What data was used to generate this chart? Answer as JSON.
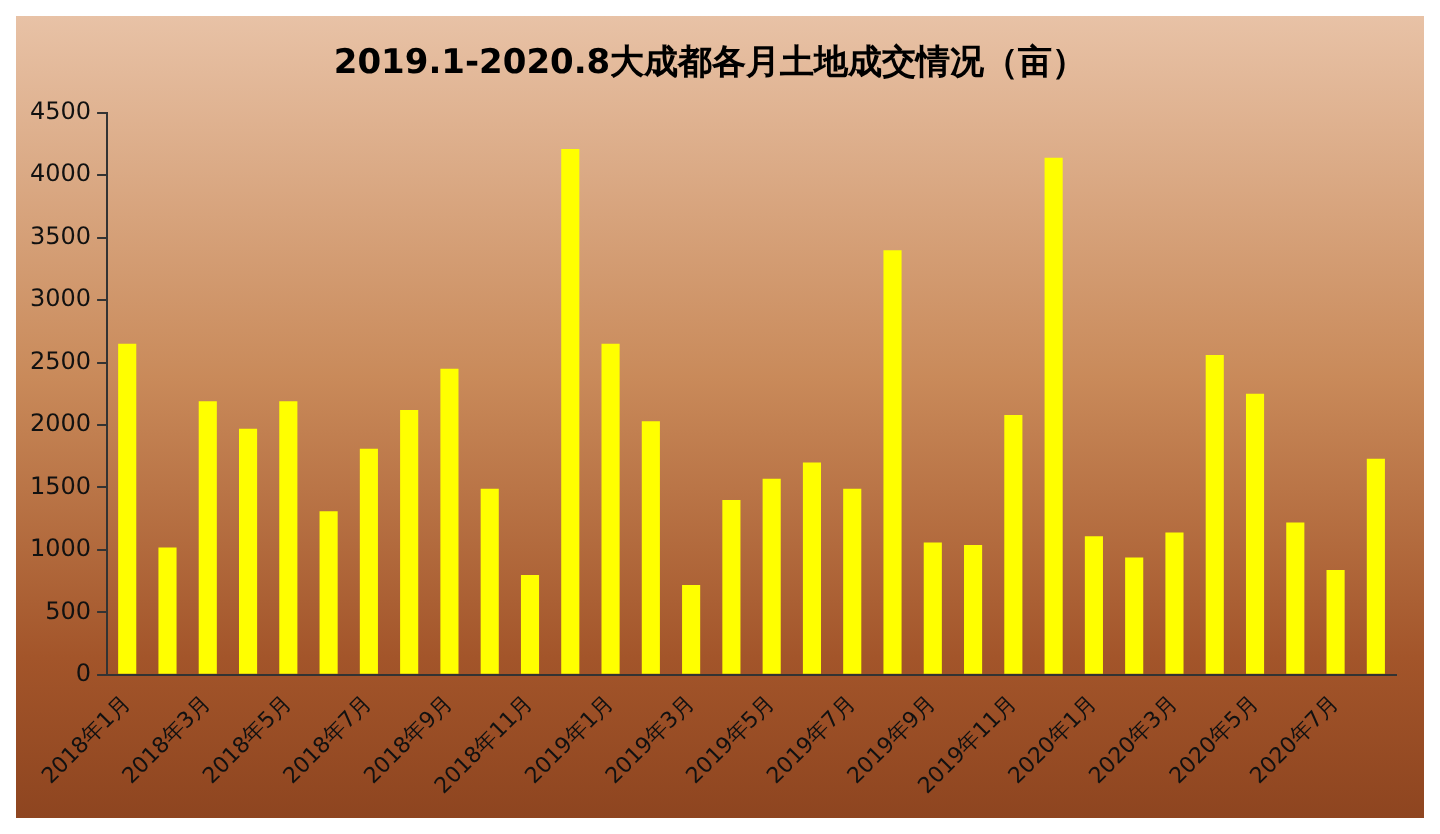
{
  "chart_data": {
    "type": "bar",
    "title": "2019.1-2020.8大成都各月土地成交情况（亩）",
    "categories": [
      "2018年1月",
      null,
      "2018年3月",
      null,
      "2018年5月",
      null,
      "2018年7月",
      null,
      "2018年9月",
      null,
      "2018年11月",
      null,
      "2019年1月",
      null,
      "2019年3月",
      null,
      "2019年5月",
      null,
      "2019年7月",
      null,
      "2019年9月",
      null,
      "2019年11月",
      null,
      "2020年1月",
      null,
      "2020年3月",
      null,
      "2020年5月",
      null,
      "2020年7月",
      null
    ],
    "values": [
      2650,
      1020,
      2190,
      1970,
      2190,
      1310,
      1810,
      2120,
      2450,
      1490,
      800,
      4210,
      2650,
      2030,
      720,
      1400,
      1570,
      1700,
      1490,
      3400,
      1060,
      1040,
      2080,
      4140,
      1110,
      940,
      1140,
      2560,
      2250,
      1220,
      840,
      1730
    ],
    "color": "#ffff00",
    "ylim": [
      0,
      4500
    ],
    "yticks": [
      0,
      500,
      1000,
      1500,
      2000,
      2500,
      3000,
      3500,
      4000,
      4500
    ],
    "grid": false,
    "legend": false
  }
}
